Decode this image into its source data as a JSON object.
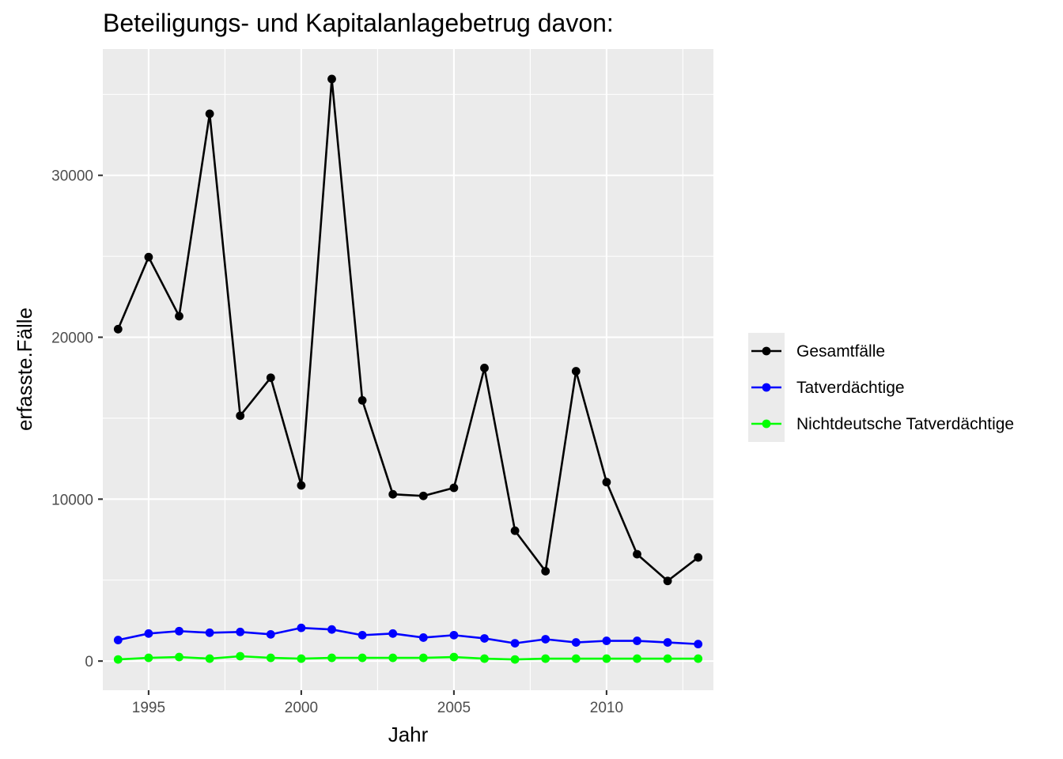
{
  "chart_data": {
    "type": "line",
    "title": "Beteiligungs- und Kapitalanlagebetrug davon:",
    "xlabel": "Jahr",
    "ylabel": "erfasste.Fälle",
    "xlim": [
      1993.5,
      2013.5
    ],
    "ylim": [
      -1800,
      37800
    ],
    "x_ticks": [
      1995,
      2000,
      2005,
      2010
    ],
    "y_ticks": [
      0,
      10000,
      20000,
      30000
    ],
    "grid": true,
    "legend_position": "right",
    "x": [
      1994,
      1995,
      1996,
      1997,
      1998,
      1999,
      2000,
      2001,
      2002,
      2003,
      2004,
      2005,
      2006,
      2007,
      2008,
      2009,
      2010,
      2011,
      2012,
      2013
    ],
    "series": [
      {
        "name": "Gesamtfälle",
        "color": "#000000",
        "values": [
          20500,
          24950,
          21300,
          33800,
          15150,
          17500,
          10850,
          35950,
          16100,
          10300,
          10200,
          10700,
          18100,
          8050,
          5550,
          17900,
          11050,
          6600,
          4950,
          6400
        ]
      },
      {
        "name": "Tatverdächtige",
        "color": "#0000ff",
        "values": [
          1300,
          1700,
          1850,
          1750,
          1800,
          1650,
          2050,
          1950,
          1600,
          1700,
          1450,
          1600,
          1400,
          1100,
          1350,
          1150,
          1250,
          1250,
          1150,
          1050
        ]
      },
      {
        "name": "Nichtdeutsche Tatverdächtige",
        "color": "#00ff00",
        "values": [
          100,
          200,
          250,
          150,
          300,
          200,
          150,
          200,
          200,
          200,
          200,
          250,
          150,
          100,
          150,
          150,
          150,
          150,
          150,
          150
        ]
      }
    ]
  }
}
